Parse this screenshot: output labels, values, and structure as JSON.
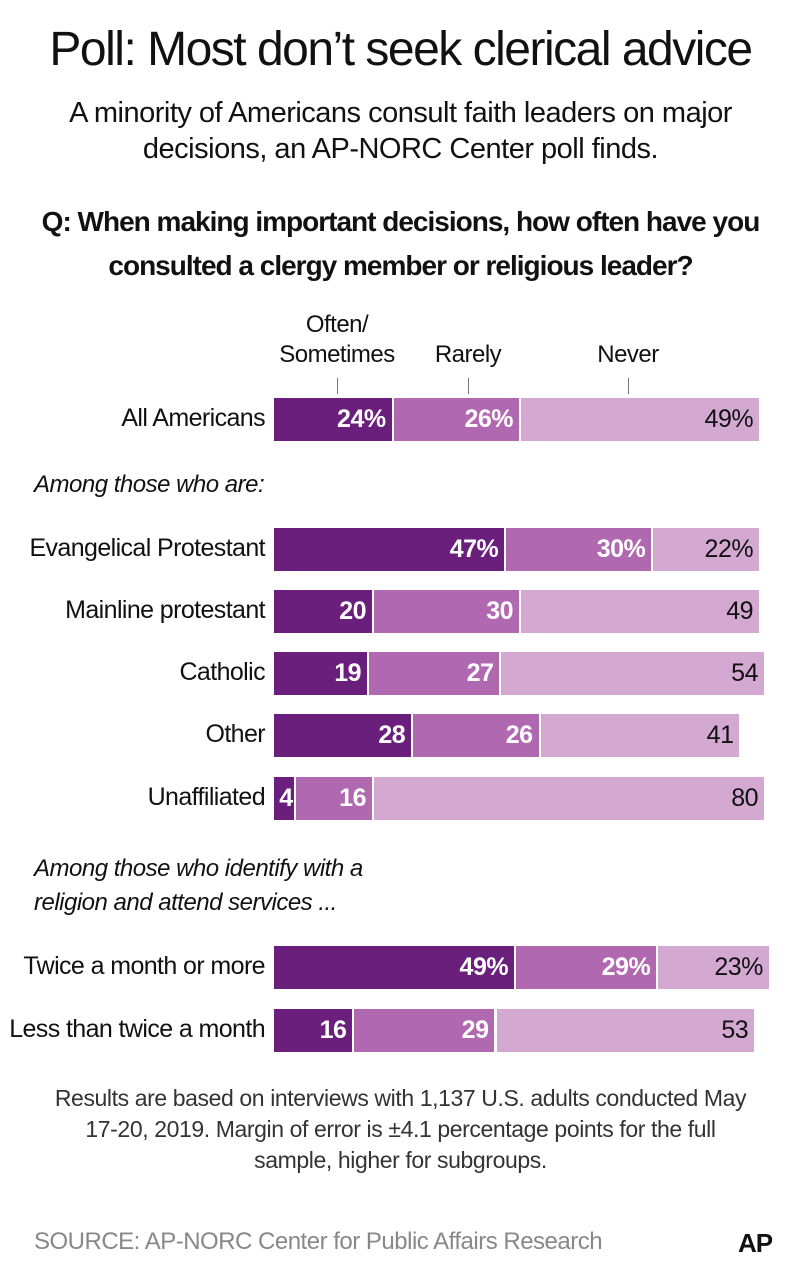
{
  "chart_data": {
    "type": "bar",
    "orientation": "horizontal",
    "stacked": true,
    "title": "Poll: Most don’t seek clerical advice",
    "subtitle": "A minority of Americans consult faith leaders on major decisions, an AP-NORC Center poll finds.",
    "question": "Q: When making important decisions, how often have you consulted a clergy member or religious leader?",
    "legend": [
      "Often/ Sometimes",
      "Rarely",
      "Never"
    ],
    "colors": [
      "#6b1f7c",
      "#b068b0",
      "#d3a8d1"
    ],
    "groups": [
      {
        "heading": "",
        "rows": [
          {
            "label": "All Americans",
            "values": [
              24,
              26,
              49
            ],
            "labels": [
              "24%",
              "26%",
              "49%"
            ]
          }
        ]
      },
      {
        "heading": "Among those who are:",
        "rows": [
          {
            "label": "Evangelical Protestant",
            "values": [
              47,
              30,
              22
            ],
            "labels": [
              "47%",
              "30%",
              "22%"
            ]
          },
          {
            "label": "Mainline protestant",
            "values": [
              20,
              30,
              49
            ],
            "labels": [
              "20",
              "30",
              "49"
            ]
          },
          {
            "label": "Catholic",
            "values": [
              19,
              27,
              54
            ],
            "labels": [
              "19",
              "27",
              "54"
            ]
          },
          {
            "label": "Other",
            "values": [
              28,
              26,
              41
            ],
            "labels": [
              "28",
              "26",
              "41"
            ]
          },
          {
            "label": "Unaffiliated",
            "values": [
              4,
              16,
              80
            ],
            "labels": [
              "4",
              "16",
              "80"
            ]
          }
        ]
      },
      {
        "heading": "Among those who identify with a religion and attend services ...",
        "rows": [
          {
            "label": "Twice a month or more",
            "values": [
              49,
              29,
              23
            ],
            "labels": [
              "49%",
              "29%",
              "23%"
            ]
          },
          {
            "label": "Less than twice a month",
            "values": [
              16,
              29,
              53
            ],
            "labels": [
              "16",
              "29",
              "53"
            ]
          }
        ]
      }
    ]
  },
  "note": "Results are based on interviews with 1,137 U.S. adults conducted May 17-20, 2019. Margin of error is ±4.1 percentage points for the full sample, higher for subgroups.",
  "source": "SOURCE: AP-NORC Center for Public Affairs Research",
  "logo": "AP"
}
